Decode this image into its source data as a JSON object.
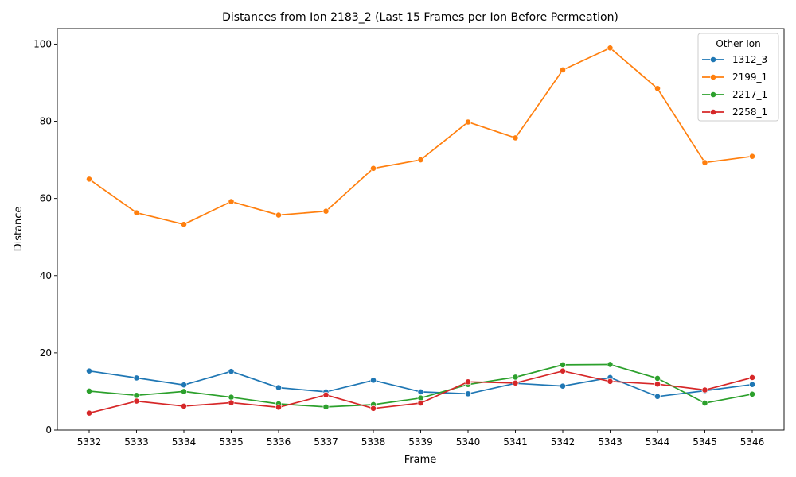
{
  "chart_data": {
    "type": "line",
    "title": "Distances from Ion 2183_2 (Last 15 Frames per Ion Before Permeation)",
    "xlabel": "Frame",
    "ylabel": "Distance",
    "x": [
      5332,
      5333,
      5334,
      5335,
      5336,
      5337,
      5338,
      5339,
      5340,
      5341,
      5342,
      5343,
      5344,
      5345,
      5346
    ],
    "x_ticks": [
      "5332",
      "5333",
      "5334",
      "5335",
      "5336",
      "5337",
      "5338",
      "5339",
      "5340",
      "5341",
      "5342",
      "5343",
      "5344",
      "5345",
      "5346"
    ],
    "ylim": [
      0,
      104
    ],
    "y_ticks": [
      "0",
      "20",
      "40",
      "60",
      "80",
      "100"
    ],
    "y_tick_values": [
      0,
      20,
      40,
      60,
      80,
      100
    ],
    "grid": false,
    "legend": {
      "title": "Other Ion",
      "placement": "top-right"
    },
    "series": [
      {
        "name": "1312_3",
        "color": "#1f77b4",
        "values": [
          15.3,
          13.5,
          11.7,
          15.2,
          11.0,
          9.9,
          12.9,
          9.9,
          9.4,
          12.1,
          11.4,
          13.6,
          8.7,
          10.2,
          11.8
        ]
      },
      {
        "name": "2199_1",
        "color": "#ff7f0e",
        "values": [
          65.0,
          56.3,
          53.3,
          59.2,
          55.7,
          56.7,
          67.8,
          70.0,
          79.8,
          75.7,
          93.3,
          99.0,
          88.5,
          69.3,
          70.9
        ]
      },
      {
        "name": "2217_1",
        "color": "#2ca02c",
        "values": [
          10.1,
          9.0,
          10.0,
          8.5,
          6.8,
          6.0,
          6.6,
          8.3,
          11.8,
          13.7,
          16.9,
          17.0,
          13.4,
          7.0,
          9.3
        ]
      },
      {
        "name": "2258_1",
        "color": "#d62728",
        "values": [
          4.4,
          7.5,
          6.2,
          7.1,
          5.9,
          9.1,
          5.6,
          7.0,
          12.5,
          12.2,
          15.3,
          12.6,
          11.9,
          10.4,
          13.6
        ]
      }
    ]
  }
}
